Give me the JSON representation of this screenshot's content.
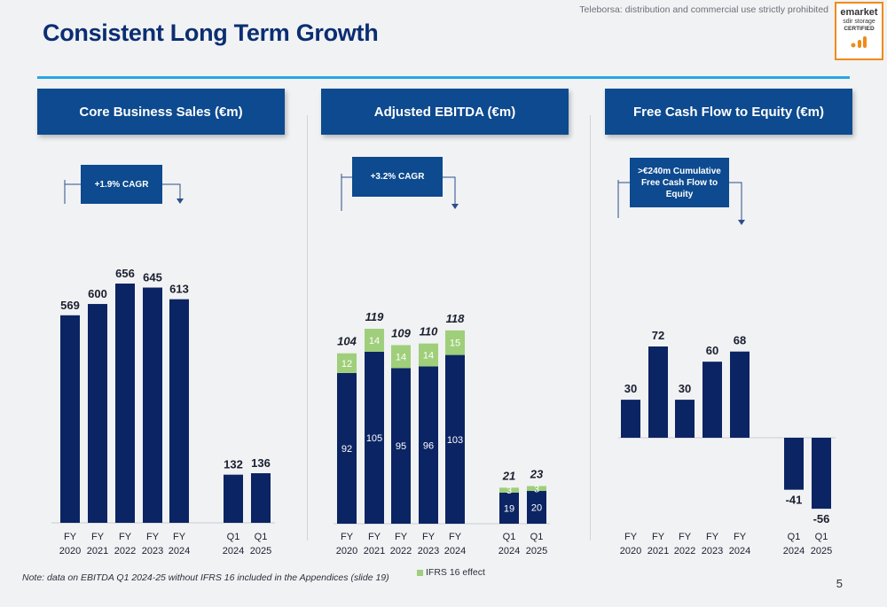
{
  "header": {
    "title": "Consistent Long Term Growth",
    "notice": "Teleborsa: distribution and commercial use strictly prohibited",
    "logo": {
      "line1": "emarket",
      "line2": "sdir storage",
      "line3": "CERTIFIED"
    }
  },
  "colors": {
    "bar": "#0b2463",
    "ifrs": "#9fcf7a",
    "header_bg": "#0d4a8f",
    "accent_rule": "#2aa6e4"
  },
  "chart_data": [
    {
      "type": "bar",
      "title": "Core Business Sales (€m)",
      "callout": "+1.9% CAGR",
      "categories": [
        "FY 2020",
        "FY 2021",
        "FY 2022",
        "FY 2023",
        "FY 2024",
        "Q1 2024",
        "Q1 2025"
      ],
      "values": [
        569,
        600,
        656,
        645,
        613,
        132,
        136
      ],
      "labels": [
        "569",
        "600",
        "656",
        "645",
        "613",
        "132",
        "136"
      ]
    },
    {
      "type": "bar",
      "stacked": true,
      "title": "Adjusted EBITDA (€m)",
      "callout": "+3.2% CAGR",
      "categories": [
        "FY 2020",
        "FY 2021",
        "FY 2022",
        "FY 2023",
        "FY 2024",
        "Q1 2024",
        "Q1 2025"
      ],
      "series": [
        {
          "values": [
            92,
            105,
            95,
            96,
            103,
            19,
            20
          ]
        },
        {
          "name": "IFRS 16 effect",
          "values": [
            12,
            14,
            14,
            14,
            15,
            3,
            3
          ]
        }
      ],
      "totals": [
        "104",
        "119",
        "109",
        "110",
        "118",
        "21",
        "23"
      ]
    },
    {
      "type": "bar",
      "title": "Free Cash Flow to Equity (€m)",
      "callout": ">€240m Cumulative Free Cash Flow to Equity",
      "categories": [
        "FY 2020",
        "FY 2021",
        "FY 2022",
        "FY 2023",
        "FY 2024",
        "Q1 2024",
        "Q1 2025"
      ],
      "values": [
        30,
        72,
        30,
        60,
        68,
        -41,
        -56
      ],
      "labels": [
        "30",
        "72",
        "30",
        "60",
        "68",
        "-41",
        "-56"
      ]
    }
  ],
  "footer": {
    "note": "Note: data on EBITDA Q1 2024-25 without IFRS 16 included in the Appendices (slide 19)",
    "page": "5"
  }
}
